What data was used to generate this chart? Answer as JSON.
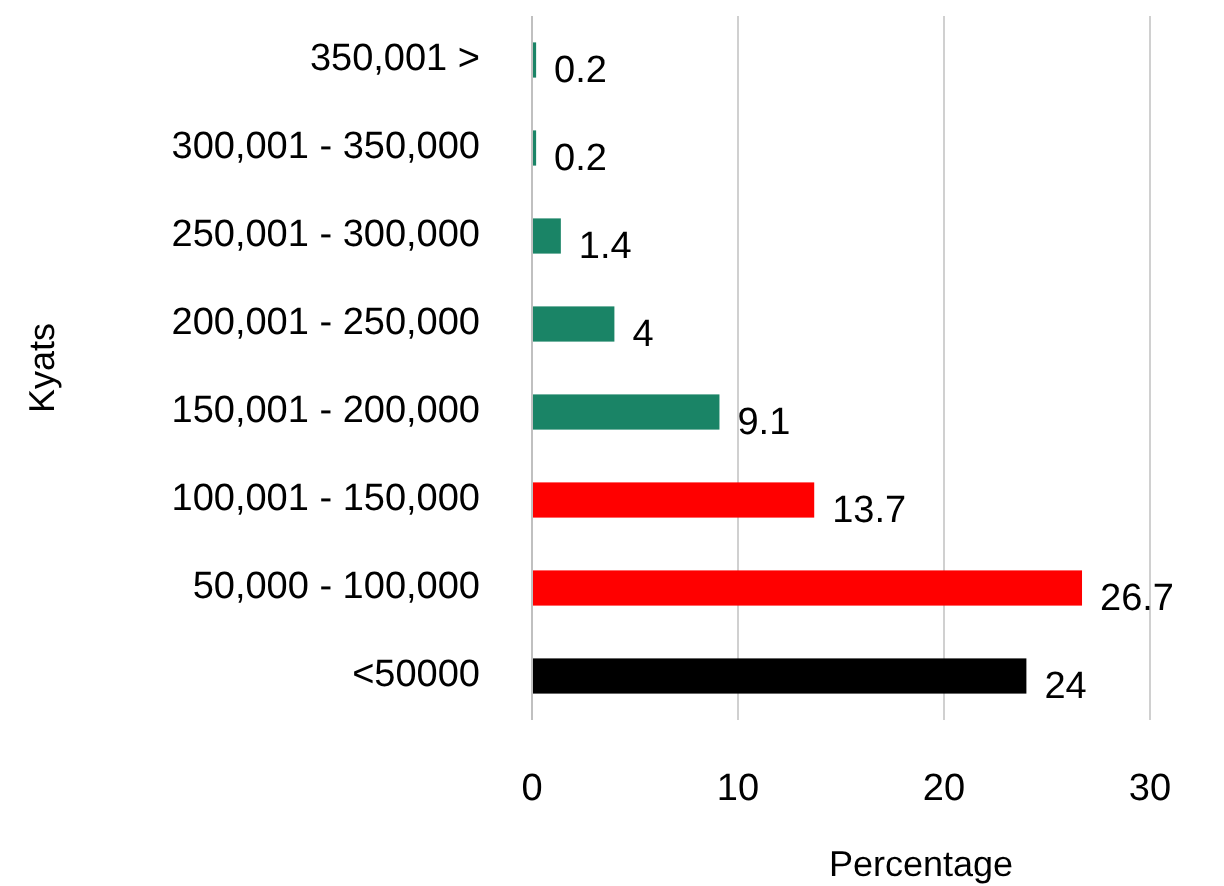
{
  "chart_data": {
    "type": "bar",
    "orientation": "horizontal",
    "xlabel": "Percentage",
    "ylabel": "Kyats",
    "categories": [
      "350,001 >",
      "300,001 - 350,000",
      "250,001 - 300,000",
      "200,001 - 250,000",
      "150,001 - 200,000",
      "100,001 - 150,000",
      "50,000 - 100,000",
      "<50000"
    ],
    "values": [
      0.2,
      0.2,
      1.4,
      4,
      9.1,
      13.7,
      26.7,
      24
    ],
    "colors": [
      "#1a8466",
      "#1a8466",
      "#1a8466",
      "#1a8466",
      "#1a8466",
      "#ff0000",
      "#ff0000",
      "#000000"
    ],
    "xlim": [
      0,
      30
    ],
    "xticks": [
      0,
      10,
      20,
      30
    ],
    "grid": "x",
    "data_labels": true
  }
}
